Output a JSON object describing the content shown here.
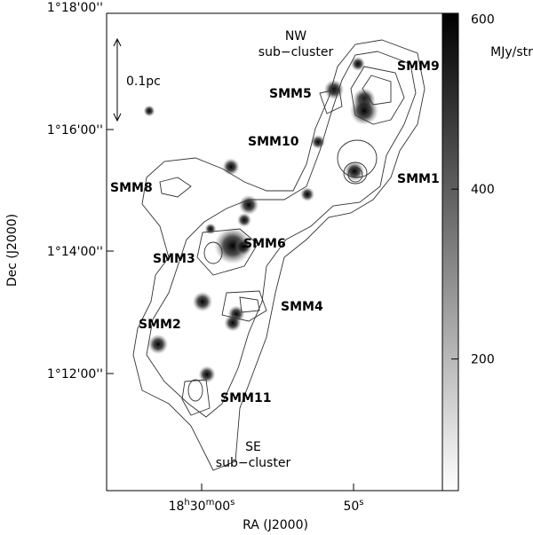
{
  "axes": {
    "xlabel": "RA (J2000)",
    "ylabel": "Dec (J2000)",
    "xticks": [
      {
        "parts": [
          "18",
          "h",
          "30",
          "m",
          "00",
          "s"
        ]
      },
      {
        "parts": [
          "50",
          "s"
        ]
      }
    ],
    "yticks": [
      "1°18'00''",
      "1°16'00''",
      "1°14'00''",
      "1°12'00''"
    ]
  },
  "colorbar": {
    "label": "MJy/str",
    "ticks": [
      200,
      400,
      600
    ],
    "range": [
      45,
      607
    ]
  },
  "annotations": {
    "nw": [
      "NW",
      "sub−cluster"
    ],
    "se": [
      "SE",
      "sub−cluster"
    ],
    "scale": "0.1pc",
    "sources": [
      "SMM9",
      "SMM5",
      "SMM10",
      "SMM1",
      "SMM8",
      "SMM6",
      "SMM3",
      "SMM4",
      "SMM2",
      "SMM11"
    ]
  }
}
